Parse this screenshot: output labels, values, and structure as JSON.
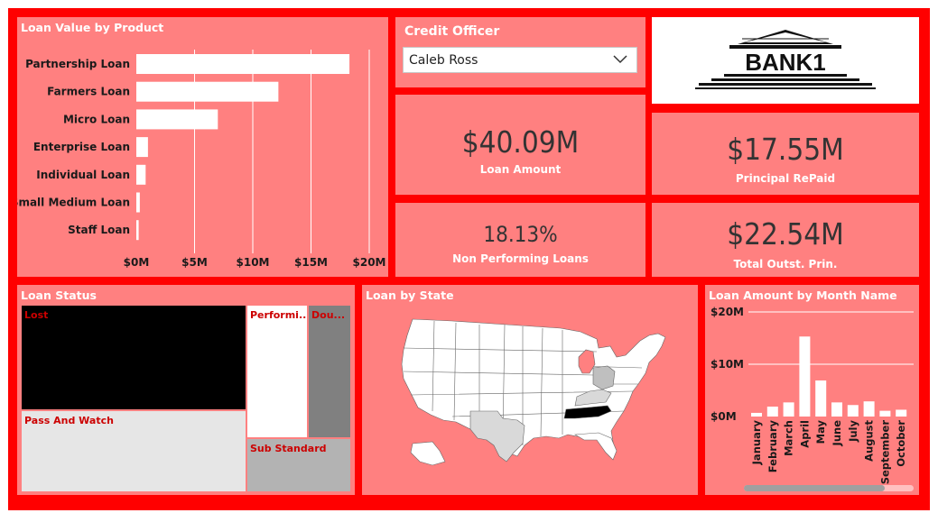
{
  "bar_chart": {
    "title": "Loan Value by Product",
    "categories": [
      "Partnership Loan",
      "Farmers Loan",
      "Micro Loan",
      "Enterprise Loan",
      "Individual Loan",
      "Small Medium Loan",
      "Staff Loan"
    ],
    "values_m": [
      18.3,
      12.2,
      7.0,
      1.0,
      0.8,
      0.3,
      0.2
    ],
    "ticks": [
      "$0M",
      "$5M",
      "$10M",
      "$15M",
      "$20M"
    ],
    "tick_values": [
      0,
      5,
      10,
      15,
      20
    ],
    "bar_color": "#ffffff",
    "gridline_color": "#ffffff"
  },
  "slicer": {
    "title": "Credit Officer",
    "selected": "Caleb Ross"
  },
  "logo": {
    "text": "BANK1"
  },
  "kpis": {
    "loan_amount": {
      "value": "$40.09M",
      "label": "Loan Amount"
    },
    "principal_repaid": {
      "value": "$17.55M",
      "label": "Principal RePaid"
    },
    "npl": {
      "value": "18.13%",
      "label": "Non Performing Loans"
    },
    "outstanding": {
      "value": "$22.54M",
      "label": "Total Outst. Prin."
    }
  },
  "treemap": {
    "title": "Loan Status",
    "items": [
      {
        "label": "Lost",
        "color": "#000000"
      },
      {
        "label": "Pass And Watch",
        "color": "#e6e6e6"
      },
      {
        "label": "Performi...",
        "color": "#ffffff"
      },
      {
        "label": "Dou...",
        "color": "#808080"
      },
      {
        "label": "Sub Standard",
        "color": "#b3b3b3"
      }
    ]
  },
  "map": {
    "title": "Loan by State",
    "highlighted_states": [
      {
        "name": "Tennessee",
        "color": "#000000"
      },
      {
        "name": "Texas",
        "color": "#d9d9d9"
      },
      {
        "name": "Kentucky",
        "color": "#d9d9d9"
      },
      {
        "name": "Ohio",
        "color": "#bfbfbf"
      },
      {
        "name": "Michigan",
        "color": "#ff8080"
      }
    ]
  },
  "month_chart": {
    "title": "Loan Amount by Month Name",
    "ticks": [
      "$20M",
      "$10M",
      "$0M"
    ],
    "tick_values": [
      20,
      10,
      0
    ],
    "chart_data": {
      "type": "bar",
      "categories": [
        "January",
        "February",
        "March",
        "April",
        "May",
        "June",
        "July",
        "August",
        "September",
        "October"
      ],
      "values": [
        0.7,
        1.9,
        2.7,
        15.3,
        6.9,
        2.7,
        2.2,
        2.9,
        1.1,
        1.3
      ],
      "ylim": [
        0,
        20
      ],
      "ylabel": "",
      "xlabel": ""
    },
    "scroll_position": 0.83
  }
}
